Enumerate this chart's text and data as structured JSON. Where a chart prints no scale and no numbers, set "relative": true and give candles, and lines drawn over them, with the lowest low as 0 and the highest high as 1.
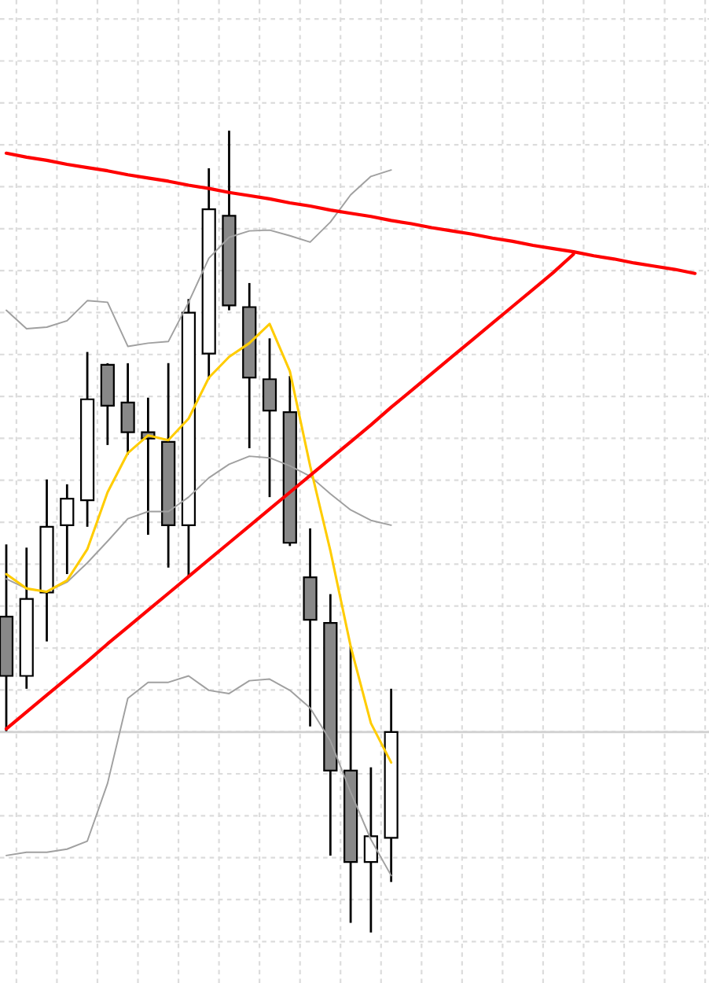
{
  "chart_data": {
    "type": "candlestick",
    "relative": true,
    "grid": true,
    "tick_labels": false,
    "categories": [
      null,
      null,
      null,
      null,
      null,
      null,
      null,
      null,
      null,
      null,
      null,
      null,
      null,
      null,
      null,
      null,
      null,
      null,
      null,
      null,
      null,
      null,
      null,
      null,
      null,
      null,
      null,
      null,
      null,
      null,
      null,
      null,
      null,
      null,
      null
    ],
    "ohlc": [
      [
        0.394,
        0.484,
        0.251,
        0.32
      ],
      [
        0.32,
        0.48,
        0.304,
        0.416
      ],
      [
        0.424,
        0.565,
        0.363,
        0.506
      ],
      [
        0.508,
        0.559,
        0.447,
        0.541
      ],
      [
        0.539,
        0.724,
        0.506,
        0.665
      ],
      [
        0.708,
        0.71,
        0.608,
        0.657
      ],
      [
        0.661,
        0.71,
        0.596,
        0.624
      ],
      [
        0.624,
        0.667,
        0.496,
        0.616
      ],
      [
        0.612,
        0.71,
        0.455,
        0.508
      ],
      [
        0.508,
        0.79,
        0.445,
        0.773
      ],
      [
        0.722,
        0.953,
        0.69,
        0.902
      ],
      [
        0.894,
        1.0,
        0.776,
        0.782
      ],
      [
        0.78,
        0.81,
        0.604,
        0.692
      ],
      [
        0.69,
        0.741,
        0.543,
        0.651
      ],
      [
        0.649,
        0.694,
        0.482,
        0.486
      ],
      [
        0.443,
        0.504,
        0.257,
        0.39
      ],
      [
        0.386,
        0.422,
        0.096,
        0.202
      ],
      [
        0.202,
        0.357,
        0.012,
        0.088
      ],
      [
        0.088,
        0.206,
        0.0,
        0.12
      ],
      [
        0.118,
        0.304,
        0.063,
        0.25
      ],
      null,
      null,
      null,
      null,
      null,
      null,
      null,
      null,
      null,
      null,
      null,
      null,
      null,
      null,
      null
    ],
    "colors": [
      "#888888",
      "#ffffff",
      "#ffffff",
      "#ffffff",
      "#ffffff",
      "#888888",
      "#888888",
      "#888888",
      "#888888",
      "#ffffff",
      "#ffffff",
      "#888888",
      "#888888",
      "#888888",
      "#888888",
      "#888888",
      "#888888",
      "#888888",
      "#ffffff",
      "#ffffff",
      null,
      null,
      null,
      null,
      null,
      null,
      null,
      null,
      null,
      null,
      null,
      null,
      null,
      null,
      null
    ],
    "series": [
      {
        "type": "line",
        "color": "#a0a0a0",
        "values": [
          0.776,
          0.753,
          0.755,
          0.763,
          0.788,
          0.786,
          0.731,
          0.735,
          0.737,
          0.786,
          0.841,
          0.867,
          0.875,
          0.876,
          0.869,
          0.861,
          0.886,
          0.92,
          0.943,
          0.951,
          null,
          null,
          null,
          null,
          null,
          null,
          null,
          null,
          null,
          null,
          null,
          null,
          null,
          null,
          null
        ]
      },
      {
        "type": "line",
        "color": "#a0a0a0",
        "values": [
          0.441,
          0.429,
          0.425,
          0.437,
          0.461,
          0.488,
          0.516,
          0.525,
          0.525,
          0.543,
          0.567,
          0.584,
          0.594,
          0.592,
          0.582,
          0.569,
          0.547,
          0.527,
          0.514,
          0.508,
          null,
          null,
          null,
          null,
          null,
          null,
          null,
          null,
          null,
          null,
          null,
          null,
          null,
          null,
          null
        ]
      },
      {
        "type": "line",
        "color": "#a0a0a0",
        "values": [
          0.096,
          0.1,
          0.1,
          0.104,
          0.114,
          0.186,
          0.292,
          0.312,
          0.312,
          0.32,
          0.302,
          0.298,
          0.314,
          0.316,
          0.302,
          0.28,
          0.239,
          0.175,
          0.116,
          0.071,
          null,
          null,
          null,
          null,
          null,
          null,
          null,
          null,
          null,
          null,
          null,
          null,
          null,
          null,
          null
        ]
      },
      {
        "type": "line",
        "color": "#ffcc00",
        "values": [
          0.447,
          0.429,
          0.425,
          0.439,
          0.478,
          0.549,
          0.598,
          0.62,
          0.614,
          0.641,
          0.692,
          0.718,
          0.735,
          0.759,
          0.7,
          0.582,
          0.476,
          0.357,
          0.261,
          0.212,
          null,
          null,
          null,
          null,
          null,
          null,
          null,
          null,
          null,
          null,
          null,
          null,
          null,
          null,
          null
        ]
      },
      {
        "type": "line",
        "color": "#ff0000",
        "values": [
          0.972,
          0.967,
          0.963,
          0.958,
          0.954,
          0.95,
          0.945,
          0.941,
          0.937,
          0.932,
          0.928,
          0.923,
          0.919,
          0.915,
          0.91,
          0.906,
          0.901,
          0.897,
          0.893,
          0.888,
          0.884,
          0.879,
          0.875,
          0.871,
          0.866,
          0.862,
          0.857,
          0.853,
          0.849,
          0.844,
          0.84,
          0.835,
          0.831,
          0.827,
          0.822
        ]
      },
      {
        "type": "line",
        "color": "#ff0000",
        "values": [
          0.254,
          0.275,
          0.296,
          0.317,
          0.338,
          0.36,
          0.381,
          0.402,
          0.423,
          0.444,
          0.465,
          0.486,
          0.507,
          0.528,
          0.549,
          0.57,
          0.591,
          0.612,
          0.633,
          0.655,
          0.676,
          0.697,
          0.718,
          0.739,
          0.76,
          0.781,
          0.802,
          0.823,
          0.846,
          null,
          null,
          null,
          null,
          null,
          null
        ]
      }
    ],
    "ref_lines": [
      {
        "axis": "y",
        "value": 0.25,
        "color": "#d0d0d0"
      }
    ]
  }
}
